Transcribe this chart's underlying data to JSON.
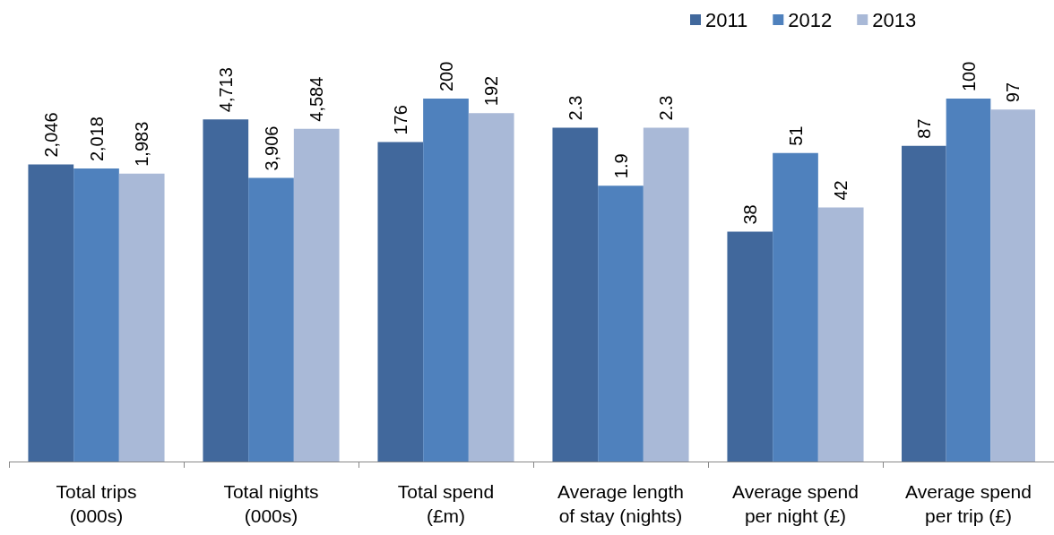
{
  "chart_data": [
    {
      "type": "bar",
      "categories": [
        "Total trips\n(000s)"
      ],
      "series": [
        {
          "color": "#41689c",
          "values": [
            2046
          ],
          "value_labels": [
            "2,046"
          ]
        },
        {
          "color": "#4f81bd",
          "values": [
            2018
          ],
          "value_labels": [
            "2,018"
          ]
        },
        {
          "color": "#a9b9d7",
          "values": [
            1983
          ],
          "value_labels": [
            "1,983"
          ]
        }
      ]
    },
    {
      "type": "bar",
      "categories": [
        "Total nights\n(000s)"
      ],
      "series": [
        {
          "color": "#41689c",
          "values": [
            4713
          ],
          "value_labels": [
            "4,713"
          ]
        },
        {
          "color": "#4f81bd",
          "values": [
            3906
          ],
          "value_labels": [
            "3,906"
          ]
        },
        {
          "color": "#a9b9d7",
          "values": [
            4584
          ],
          "value_labels": [
            "4,584"
          ]
        }
      ]
    },
    {
      "type": "bar",
      "categories": [
        "Total spend\n(£m)"
      ],
      "data_labels": true,
      "series": [
        {
          "color": "#41689c",
          "values": [
            176
          ]
        },
        {
          "color": "#4f81bd",
          "values": [
            200
          ]
        },
        {
          "color": "#a9b9d7",
          "values": [
            192
          ]
        }
      ]
    },
    {
      "type": "bar",
      "categories": [
        "Average length\nof stay (nights)"
      ],
      "data_labels": true,
      "series": [
        {
          "color": "#41689c",
          "values": [
            2.3
          ]
        },
        {
          "color": "#4f81bd",
          "values": [
            1.9
          ]
        },
        {
          "color": "#a9b9d7",
          "values": [
            2.3
          ]
        }
      ]
    },
    {
      "type": "bar",
      "categories": [
        "Average spend\nper night (£)"
      ],
      "data_labels": true,
      "series": [
        {
          "color": "#41689c",
          "values": [
            38
          ]
        },
        {
          "color": "#4f81bd",
          "values": [
            51
          ]
        },
        {
          "color": "#a9b9d7",
          "values": [
            42
          ]
        }
      ]
    },
    {
      "type": "bar",
      "categories": [
        "Average spend\nper trip (£)"
      ],
      "data_labels": true,
      "legend": "top left",
      "series": [
        {
          "name": "2011",
          "color": "#41689c",
          "values": [
            87
          ]
        },
        {
          "name": "2012",
          "color": "#4f81bd",
          "values": [
            100
          ]
        },
        {
          "name": "2013",
          "color": "#a9b9d7",
          "values": [
            97
          ]
        }
      ]
    }
  ]
}
